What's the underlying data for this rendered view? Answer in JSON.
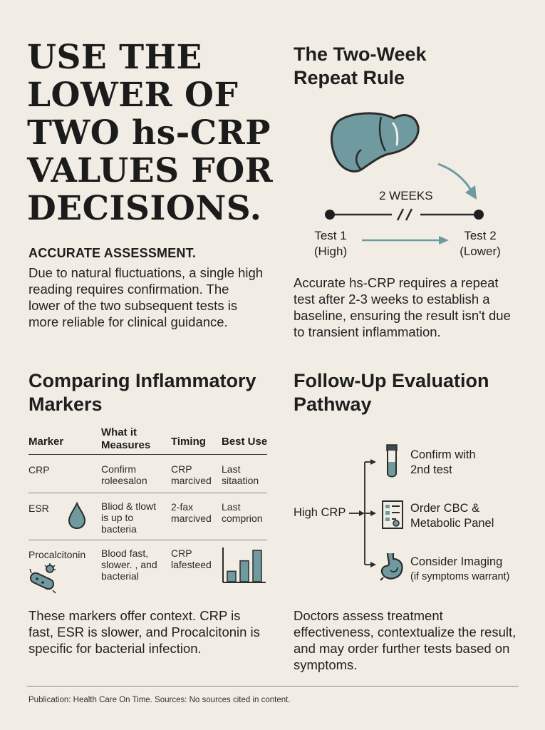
{
  "headline": [
    "USE THE",
    "LOWER OF",
    "TWO hs-CRP",
    "VALUES FOR",
    "DECISIONS."
  ],
  "assessment": {
    "heading": "ACCURATE ASSESSMENT.",
    "lines": [
      "Due to natural fluctuations, a single high",
      "reading requires confirmation. The",
      "lower of the two subsequent tests is",
      "more reliable for clinical guidance."
    ]
  },
  "repeat_rule": {
    "title": [
      "The Two-Week",
      "Repeat Rule"
    ],
    "interval_label": "2 WEEKS",
    "test1": [
      "Test 1",
      "(High)"
    ],
    "test2": [
      "Test 2",
      "(Lower)"
    ],
    "lines": [
      "Accurate hs-CRP requires a repeat",
      "test after 2-3 weeks to establish a",
      "baseline, ensuring the result isn't due",
      "to transient inflammation."
    ],
    "accent_color": "#6f9aa0",
    "organ_icon": "liver-icon"
  },
  "markers": {
    "title": [
      "Comparing Inflammatory",
      "Markers"
    ],
    "headers": {
      "marker": [
        "Marker"
      ],
      "measures": [
        "What it",
        "Measures"
      ],
      "timing": [
        "Timing"
      ],
      "best_use": [
        "Best Use"
      ]
    },
    "rows": [
      {
        "marker": "CRP",
        "measures": [
          "Confirm",
          "roleesalon"
        ],
        "timing": [
          "CRP",
          "marcived"
        ],
        "best_use": [
          "Last",
          "sitaation"
        ]
      },
      {
        "marker": "ESR",
        "measures": [
          "Bliod & tlowt",
          "is up to",
          "bacteria"
        ],
        "timing": [
          "2-fax",
          "marcived"
        ],
        "best_use": [
          "Last",
          "comprion"
        ]
      },
      {
        "marker": "Procalcitonin",
        "measures": [
          "Blood fast,",
          "slower. , and",
          "bacterial"
        ],
        "timing": [
          "CRP",
          "lafesteed"
        ],
        "best_use": []
      }
    ],
    "bar_values": [
      1,
      2,
      3
    ],
    "lines": [
      "These markers offer context. CRP is",
      "fast, ESR is slower, and Procalcitonin is",
      "specific for bacterial infection."
    ]
  },
  "pathway": {
    "title": [
      "Follow-Up Evaluation",
      "Pathway"
    ],
    "start": "High CRP",
    "steps": [
      {
        "icon": "test-tube-icon",
        "lines": [
          "Confirm with",
          "2nd test"
        ],
        "sub": ""
      },
      {
        "icon": "lab-report-icon",
        "lines": [
          "Order CBC &",
          "Metabolic Panel"
        ],
        "sub": ""
      },
      {
        "icon": "stomach-icon",
        "lines": [
          "Consider Imaging"
        ],
        "sub": "(if symptoms warrant)"
      }
    ],
    "lines": [
      "Doctors assess treatment",
      "effectiveness, contextualize the result,",
      "and may order further tests based on",
      "symptoms."
    ]
  },
  "footer": "Publication: Health Care On Time. Sources: No sources cited in content."
}
